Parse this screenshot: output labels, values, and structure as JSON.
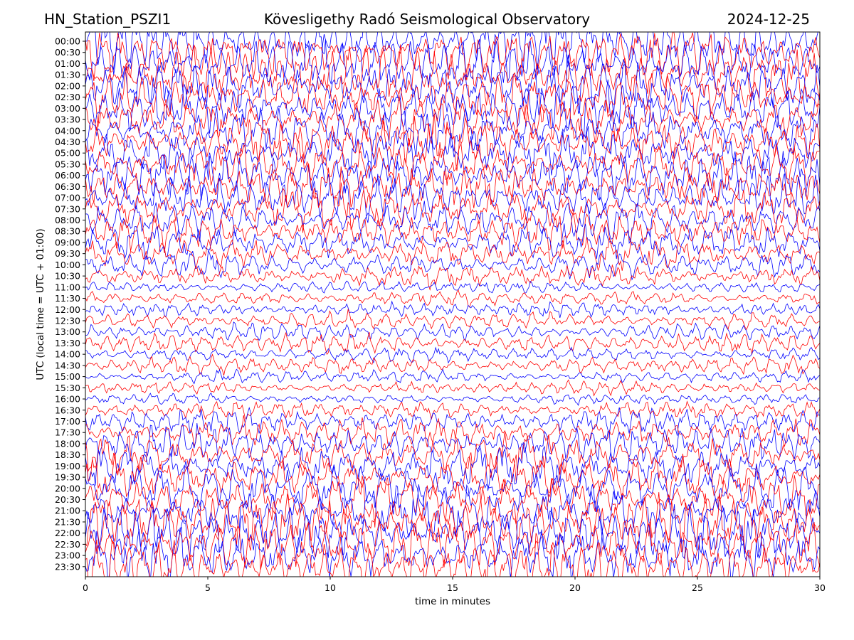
{
  "header": {
    "station": "HN_Station_PSZI1",
    "observatory": "Kövesligethy Radó Seismological Observatory",
    "date": "2024-12-25"
  },
  "chart_data": {
    "type": "line",
    "title": "Kövesligethy Radó Seismological Observatory",
    "xlabel": "time in minutes",
    "ylabel": "UTC (local time = UTC + 01:00)",
    "xlim": [
      0,
      30
    ],
    "x_ticks": [
      "0",
      "5",
      "10",
      "15",
      "20",
      "25",
      "30"
    ],
    "x_tick_values": [
      0,
      5,
      10,
      15,
      20,
      25,
      30
    ],
    "row_labels": [
      "00:00",
      "00:30",
      "01:00",
      "01:30",
      "02:00",
      "02:30",
      "03:00",
      "03:30",
      "04:00",
      "04:30",
      "05:00",
      "05:30",
      "06:00",
      "06:30",
      "07:00",
      "07:30",
      "08:00",
      "08:30",
      "09:00",
      "09:30",
      "10:00",
      "10:30",
      "11:00",
      "11:30",
      "12:00",
      "12:30",
      "13:00",
      "13:30",
      "14:00",
      "14:30",
      "15:00",
      "15:30",
      "16:00",
      "16:30",
      "17:00",
      "17:30",
      "18:00",
      "18:30",
      "19:00",
      "19:30",
      "20:00",
      "20:30",
      "21:00",
      "21:30",
      "22:00",
      "22:30",
      "23:00",
      "23:30"
    ],
    "row_amplitude": [
      1.0,
      1.0,
      1.0,
      1.0,
      0.95,
      0.95,
      0.95,
      0.9,
      0.9,
      0.9,
      0.85,
      0.85,
      0.85,
      0.8,
      0.8,
      0.75,
      0.7,
      0.65,
      0.6,
      0.55,
      0.45,
      0.4,
      0.2,
      0.25,
      0.25,
      0.3,
      0.3,
      0.35,
      0.25,
      0.3,
      0.2,
      0.2,
      0.15,
      0.3,
      0.45,
      0.55,
      0.65,
      0.75,
      0.8,
      0.85,
      0.9,
      0.95,
      0.95,
      1.0,
      1.0,
      1.0,
      1.0,
      1.0
    ],
    "trace_colors": [
      "#0000ff",
      "#ff0000"
    ]
  }
}
